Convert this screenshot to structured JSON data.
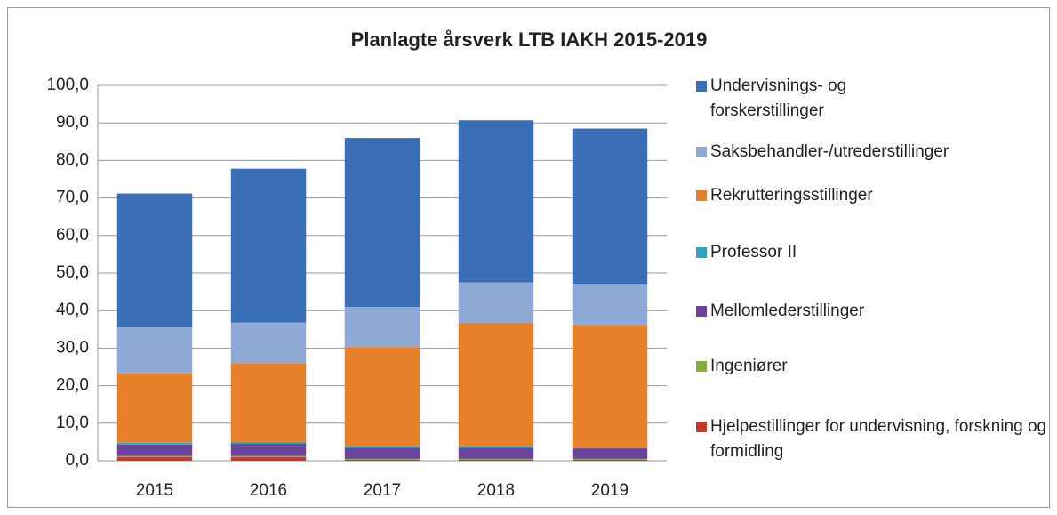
{
  "chart_data": {
    "type": "stacked_bar",
    "title": "Planlagte årsverk LTB IAKH 2015-2019",
    "categories": [
      "2015",
      "2016",
      "2017",
      "2018",
      "2019"
    ],
    "series": [
      {
        "name": "Hjelpestillinger for undervisning, forskning og formidling",
        "color": "#c0392b",
        "values": [
          1.0,
          1.0,
          0.3,
          0.3,
          0.3
        ]
      },
      {
        "name": "Ingeniører",
        "color": "#7fae3c",
        "values": [
          0.3,
          0.3,
          0.2,
          0.2,
          0.2
        ]
      },
      {
        "name": "Mellomlederstillinger",
        "color": "#6a449a",
        "values": [
          3.0,
          3.2,
          3.0,
          3.0,
          2.8
        ]
      },
      {
        "name": "Professor II",
        "color": "#2fa3bf",
        "values": [
          0.5,
          0.5,
          0.3,
          0.3,
          0.2
        ]
      },
      {
        "name": "Rekrutteringsstillinger",
        "color": "#e8822a",
        "values": [
          18.5,
          21.0,
          26.5,
          33.0,
          32.8
        ]
      },
      {
        "name": "Saksbehandler-/utrederstillinger",
        "color": "#8fa9d6",
        "values": [
          12.2,
          10.8,
          10.7,
          10.7,
          10.8
        ]
      },
      {
        "name": "Undervisnings- og forskerstillinger",
        "color": "#3a6fb5",
        "values": [
          35.7,
          41.0,
          45.0,
          43.2,
          41.4
        ]
      }
    ],
    "ylim": [
      0,
      100
    ],
    "yticks": [
      {
        "value": 0,
        "label": "0,0"
      },
      {
        "value": 10,
        "label": "10,0"
      },
      {
        "value": 20,
        "label": "20,0"
      },
      {
        "value": 30,
        "label": "30,0"
      },
      {
        "value": 40,
        "label": "40,0"
      },
      {
        "value": 50,
        "label": "50,0"
      },
      {
        "value": 60,
        "label": "60,0"
      },
      {
        "value": 70,
        "label": "70,0"
      },
      {
        "value": 80,
        "label": "80,0"
      },
      {
        "value": 90,
        "label": "90,0"
      },
      {
        "value": 100,
        "label": "100,0"
      }
    ],
    "grid": true,
    "legend": "right"
  }
}
